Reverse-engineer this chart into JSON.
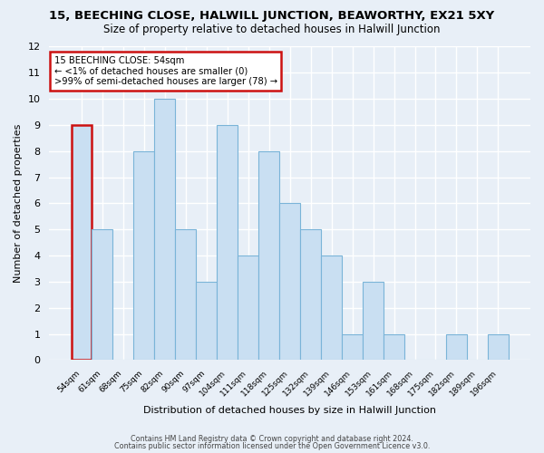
{
  "title": "15, BEECHING CLOSE, HALWILL JUNCTION, BEAWORTHY, EX21 5XY",
  "subtitle": "Size of property relative to detached houses in Halwill Junction",
  "xlabel": "Distribution of detached houses by size in Halwill Junction",
  "ylabel": "Number of detached properties",
  "categories": [
    "54sqm",
    "61sqm",
    "68sqm",
    "75sqm",
    "82sqm",
    "90sqm",
    "97sqm",
    "104sqm",
    "111sqm",
    "118sqm",
    "125sqm",
    "132sqm",
    "139sqm",
    "146sqm",
    "153sqm",
    "161sqm",
    "168sqm",
    "175sqm",
    "182sqm",
    "189sqm",
    "196sqm"
  ],
  "values": [
    9,
    5,
    0,
    8,
    10,
    5,
    3,
    9,
    4,
    8,
    6,
    5,
    4,
    1,
    3,
    1,
    0,
    0,
    1,
    0,
    1
  ],
  "bar_color": "#c9dff2",
  "bar_edge_color": "#7ab4d8",
  "highlight_index": 0,
  "highlight_bar_edge_color": "#cc1111",
  "ylim": [
    0,
    12
  ],
  "yticks": [
    0,
    1,
    2,
    3,
    4,
    5,
    6,
    7,
    8,
    9,
    10,
    11,
    12
  ],
  "annotation_title": "15 BEECHING CLOSE: 54sqm",
  "annotation_line1": "← <1% of detached houses are smaller (0)",
  "annotation_line2": ">99% of semi-detached houses are larger (78) →",
  "annotation_box_color": "#ffffff",
  "annotation_border_color": "#cc1111",
  "footer1": "Contains HM Land Registry data © Crown copyright and database right 2024.",
  "footer2": "Contains public sector information licensed under the Open Government Licence v3.0.",
  "bg_color": "#e8eff7",
  "plot_bg_color": "#e8eff7",
  "grid_color": "#ffffff"
}
